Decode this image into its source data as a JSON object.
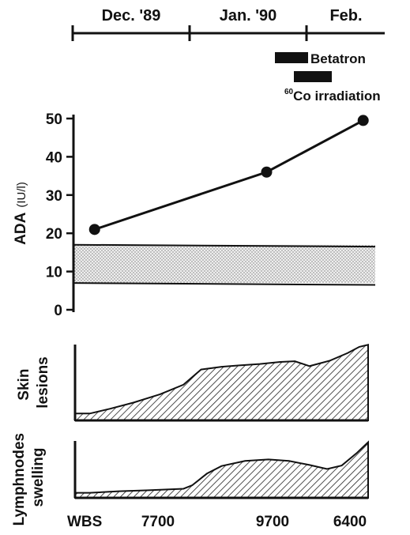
{
  "colors": {
    "ink": "#111111",
    "band": "#d9d9d9",
    "hatch": "#222222"
  },
  "timeline": {
    "months": [
      "Dec. '89",
      "Jan. '90",
      "Feb."
    ]
  },
  "treatments": [
    {
      "label": "Betatron"
    },
    {
      "label_sup": "60",
      "label_main": "Co irradiation"
    }
  ],
  "chart_data": [
    {
      "type": "line",
      "ylabel_main": "ADA",
      "ylabel_unit": "(IU/l)",
      "yticks": [
        "0",
        "10",
        "20",
        "30",
        "40",
        "50"
      ],
      "ylim": [
        0,
        50
      ],
      "x": [
        0.07,
        0.64,
        0.96
      ],
      "values": [
        21,
        36,
        49.5
      ],
      "reference_band": {
        "low_start": 7,
        "low_end": 6.5,
        "high_start": 17,
        "high_end": 16.5
      }
    },
    {
      "type": "area",
      "ylabel_lines": [
        "Skin",
        "lesions"
      ],
      "x": [
        0,
        0.05,
        0.12,
        0.2,
        0.29,
        0.37,
        0.43,
        0.5,
        0.56,
        0.63,
        0.7,
        0.75,
        0.8,
        0.87,
        0.93,
        0.97,
        1.0
      ],
      "values": [
        0.1,
        0.1,
        0.17,
        0.26,
        0.38,
        0.52,
        0.74,
        0.78,
        0.8,
        0.82,
        0.85,
        0.86,
        0.79,
        0.87,
        0.98,
        1.07,
        1.1
      ]
    },
    {
      "type": "area",
      "ylabel_lines": [
        "Lymphnodes",
        "swelling"
      ],
      "x": [
        0,
        0.05,
        0.15,
        0.25,
        0.37,
        0.4,
        0.45,
        0.5,
        0.58,
        0.66,
        0.73,
        0.8,
        0.86,
        0.91,
        0.96,
        1.0
      ],
      "values": [
        0.1,
        0.1,
        0.13,
        0.15,
        0.18,
        0.25,
        0.48,
        0.63,
        0.73,
        0.76,
        0.73,
        0.65,
        0.57,
        0.64,
        0.88,
        1.1
      ]
    }
  ],
  "wbs": {
    "label": "WBS",
    "values": [
      "7700",
      "9700",
      "6400"
    ]
  }
}
